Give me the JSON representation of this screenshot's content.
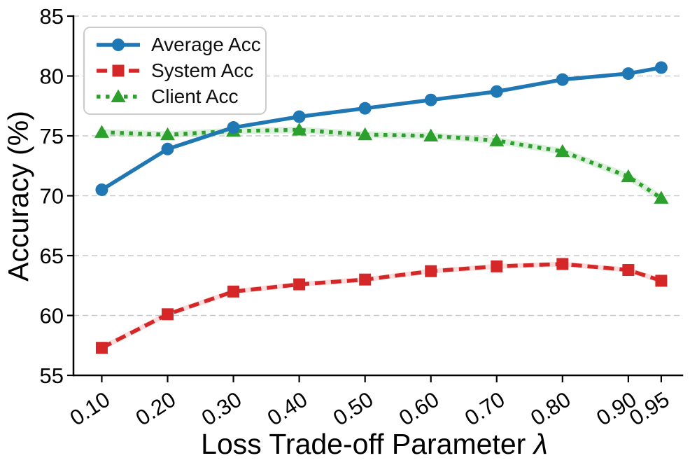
{
  "figure": {
    "background_color": "#ffffff",
    "grid_color": "#c9c9c9",
    "axis_color": "#000000"
  },
  "chart_data": {
    "type": "line",
    "title": "",
    "xlabel": "Loss Trade-off Parameter λ",
    "xlabel_text": "Loss Trade-off Parameter ",
    "xlabel_symbol": "λ",
    "ylabel": "Accuracy (%)",
    "x": [
      0.1,
      0.2,
      0.3,
      0.4,
      0.5,
      0.6,
      0.7,
      0.8,
      0.9,
      0.95
    ],
    "x_tick_labels": [
      "0.10",
      "0.20",
      "0.30",
      "0.40",
      "0.50",
      "0.60",
      "0.70",
      "0.80",
      "0.90",
      "0.95"
    ],
    "yticks": [
      55,
      60,
      65,
      70,
      75,
      80,
      85
    ],
    "xlim": [
      0.057,
      0.982
    ],
    "ylim": [
      55,
      85
    ],
    "grid": true,
    "legend_position": "upper left",
    "series": [
      {
        "name": "Average Acc",
        "color": "#1f77b4",
        "line_style": "solid",
        "marker": "circle",
        "band": false,
        "values": [
          70.5,
          73.9,
          75.7,
          76.6,
          77.3,
          78.0,
          78.7,
          79.7,
          80.2,
          80.7
        ]
      },
      {
        "name": "System Acc",
        "color": "#d62728",
        "line_style": "dashed",
        "marker": "square",
        "band": true,
        "values": [
          57.3,
          60.1,
          62.0,
          62.6,
          63.0,
          63.7,
          64.1,
          64.3,
          63.8,
          62.9
        ]
      },
      {
        "name": "Client Acc",
        "color": "#2ca02c",
        "line_style": "dotted",
        "marker": "triangle",
        "band": true,
        "values": [
          75.3,
          75.1,
          75.4,
          75.5,
          75.1,
          75.0,
          74.6,
          73.7,
          71.6,
          69.8
        ]
      }
    ]
  }
}
